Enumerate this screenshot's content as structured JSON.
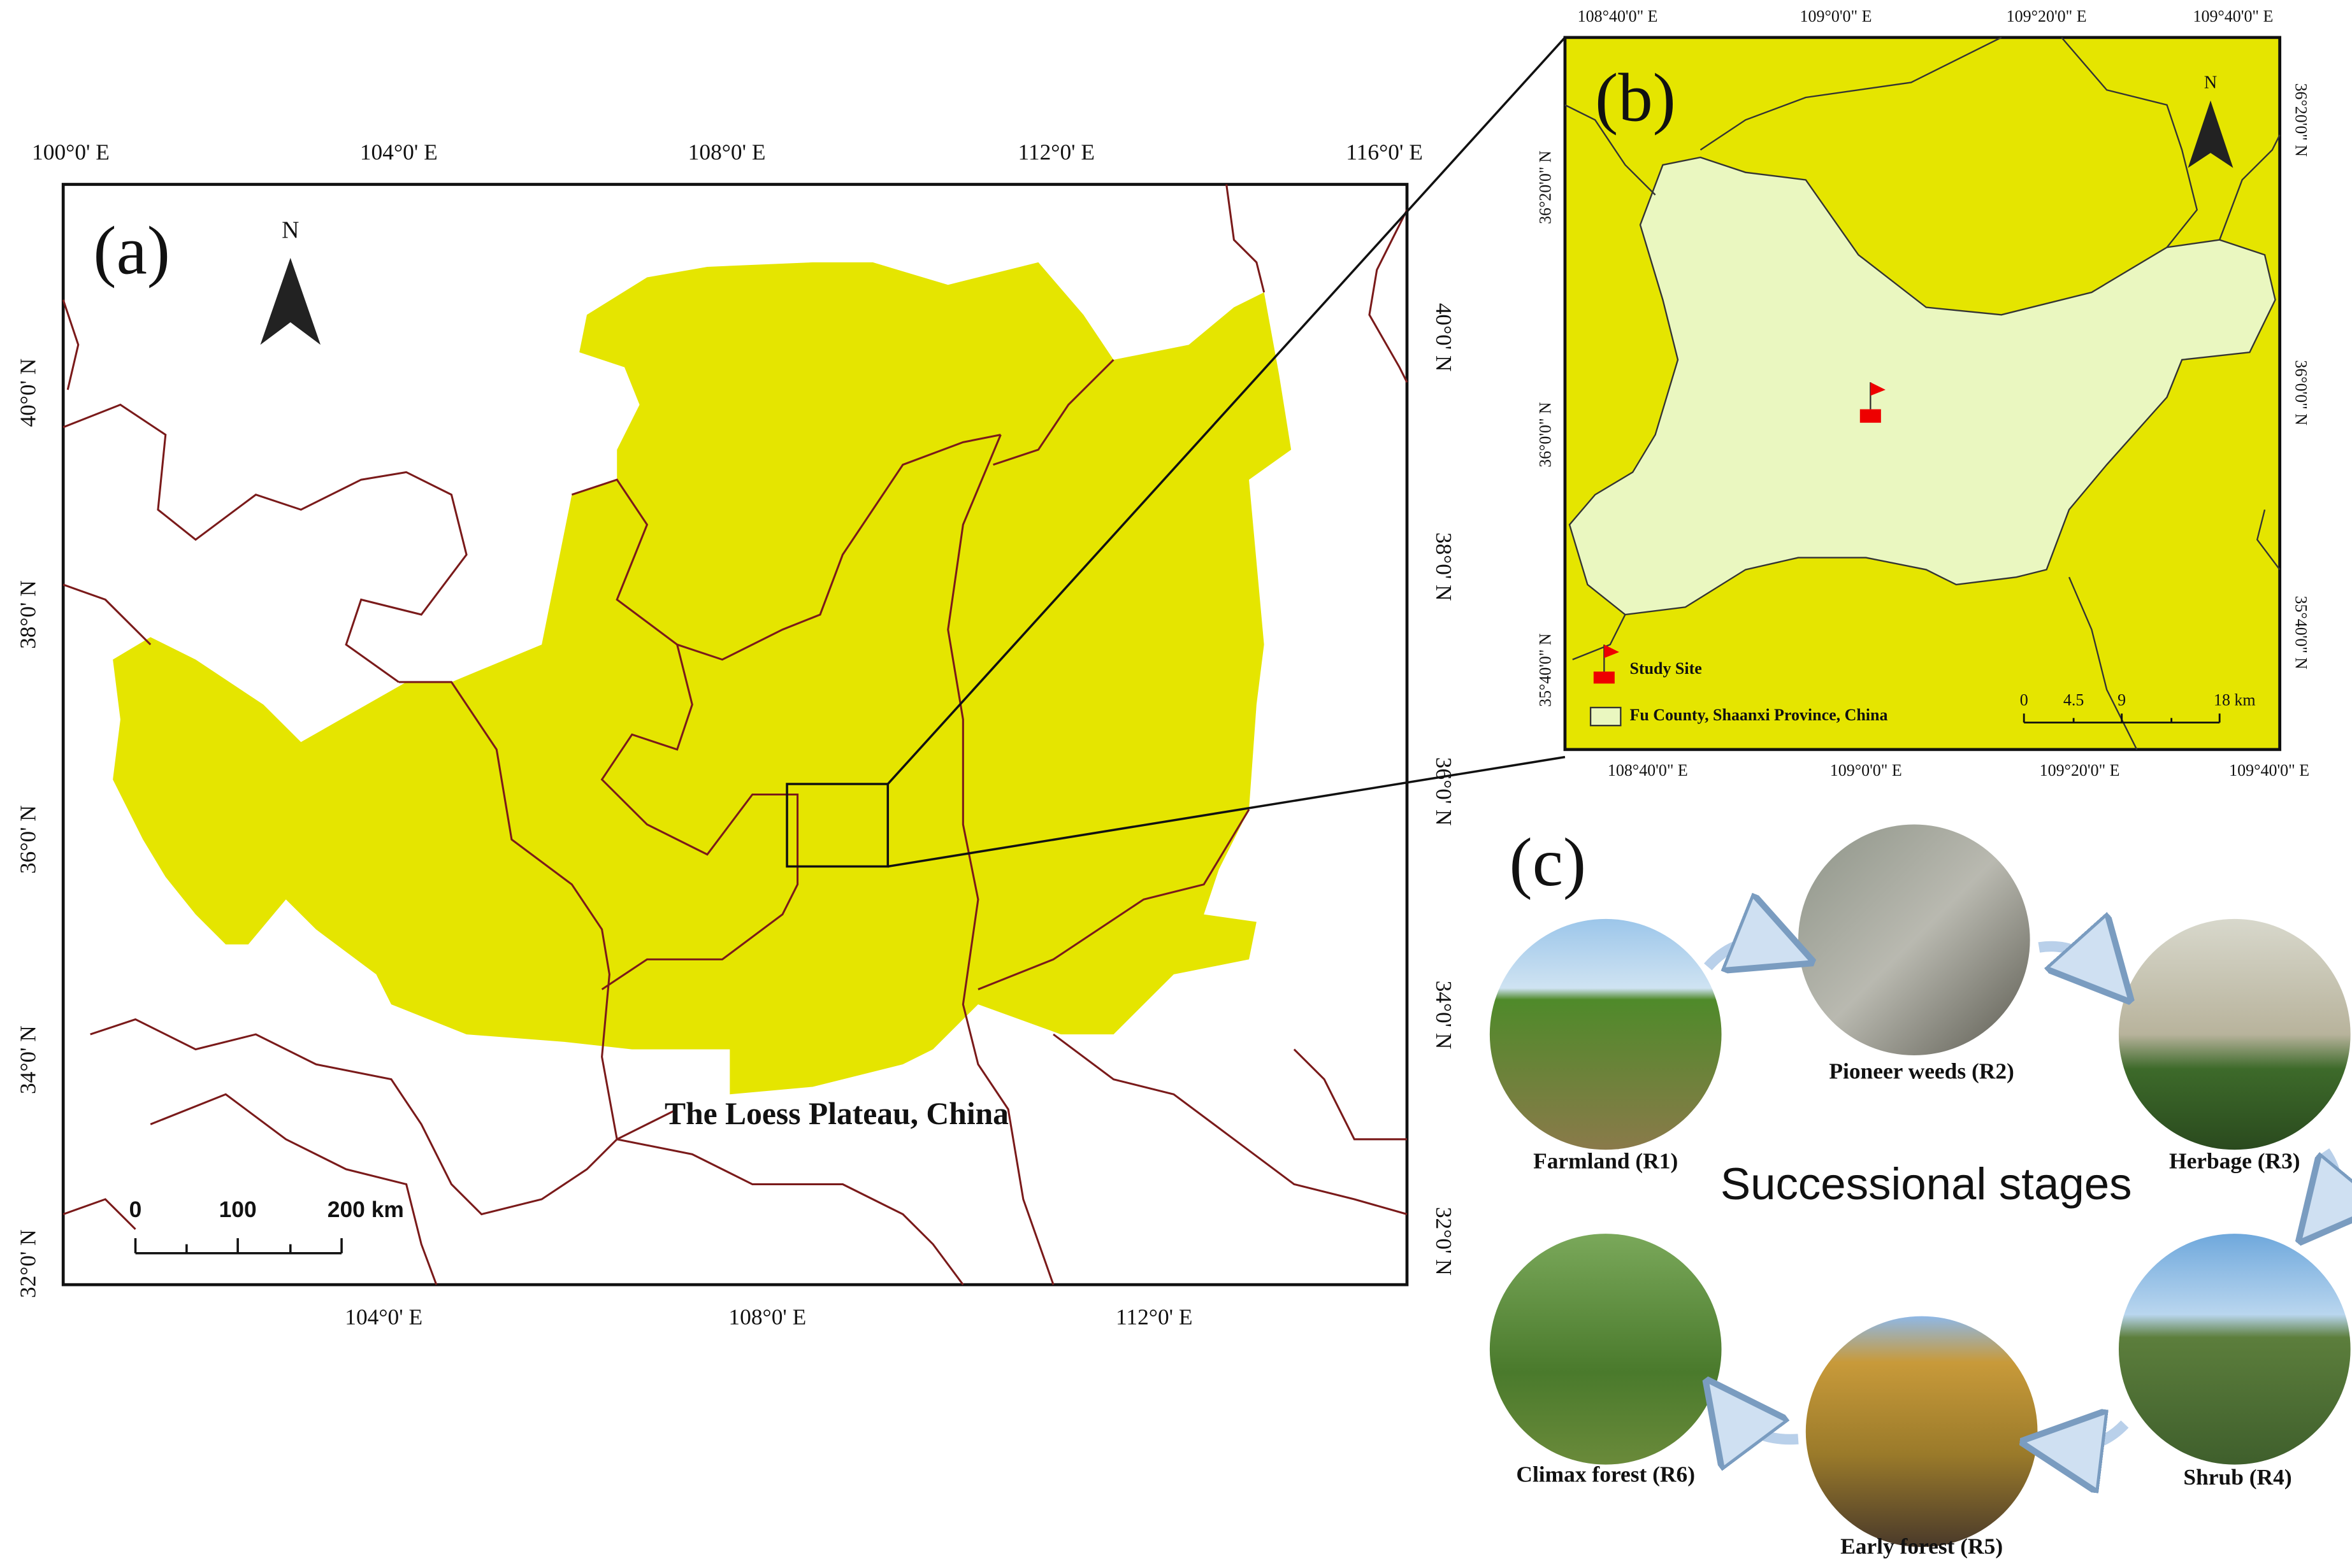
{
  "panel_a": {
    "label": "(a)",
    "north": "N",
    "top_axis": [
      "100°0' E",
      "104°0' E",
      "108°0' E",
      "112°0' E",
      "116°0' E"
    ],
    "bottom_axis": [
      "104°0' E",
      "108°0' E",
      "112°0' E"
    ],
    "left_axis": [
      "40°0' N",
      "38°0' N",
      "36°0' N",
      "34°0' N",
      "32°0' N"
    ],
    "right_axis": [
      "40°0' N",
      "38°0' N",
      "36°0' N",
      "34°0' N",
      "32°0' N"
    ],
    "region_label": "The Loess Plateau, China",
    "scale_bar": [
      "0",
      "100",
      "200 km"
    ]
  },
  "panel_b": {
    "label": "(b)",
    "north": "N",
    "top_axis": [
      "108°40'0\" E",
      "109°0'0\" E",
      "109°20'0\" E",
      "109°40'0\" E"
    ],
    "bottom_axis": [
      "108°40'0\" E",
      "109°0'0\" E",
      "109°20'0\" E",
      "109°40'0\" E"
    ],
    "left_axis": [
      "36°20'0\" N",
      "36°0'0\" N",
      "35°40'0\" N"
    ],
    "right_axis": [
      "36°20'0\" N",
      "36°0'0\" N",
      "35°40'0\" N"
    ],
    "legend": [
      "Study Site",
      "Fu County, Shaanxi Province, China"
    ],
    "scale_bar": [
      "0",
      "4.5",
      "9",
      "18 km"
    ]
  },
  "panel_c": {
    "label": "(c)",
    "title": "Successional stages",
    "stages": [
      "Farmland (R1)",
      "Pioneer weeds (R2)",
      "Herbage (R3)",
      "Shrub (R4)",
      "Early forest (R5)",
      "Climax forest (R6)"
    ]
  }
}
